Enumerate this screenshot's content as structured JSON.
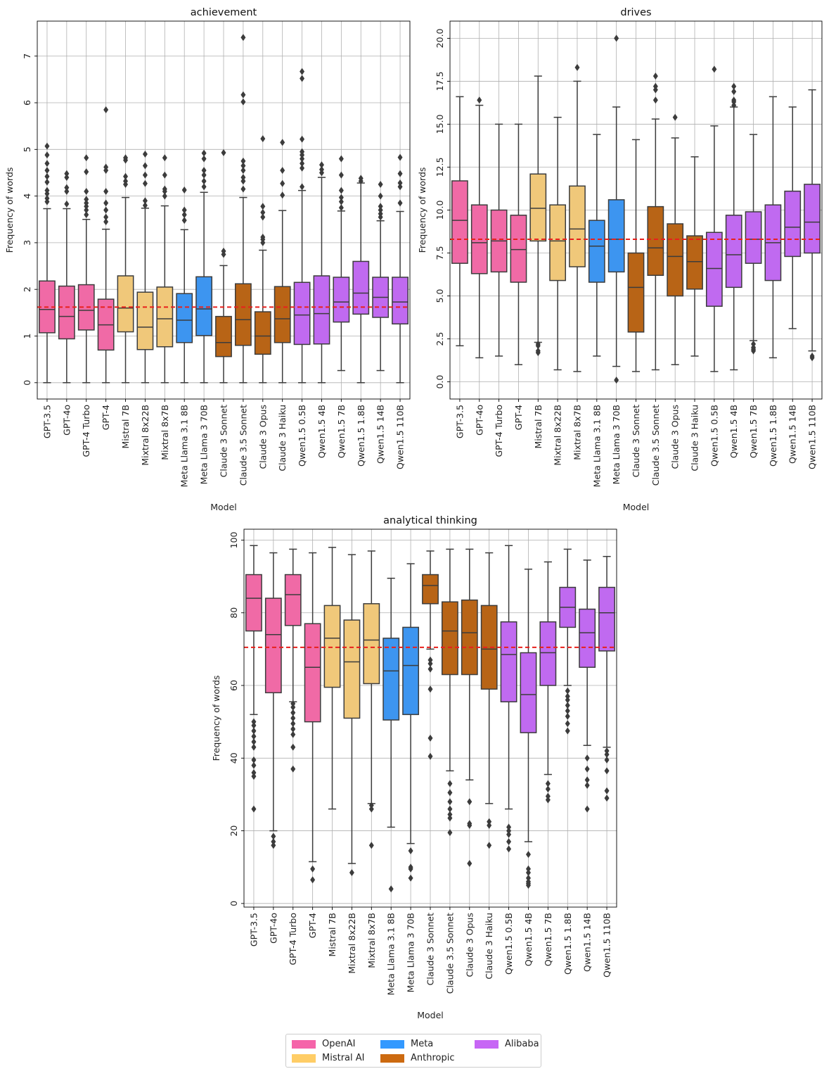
{
  "models": [
    "GPT-3.5",
    "GPT-4o",
    "GPT-4 Turbo",
    "GPT-4",
    "Mistral 7B",
    "Mixtral 8x22B",
    "Mixtral 8x7B",
    "Meta Llama 3.1 8B",
    "Meta Llama 3 70B",
    "Claude 3 Sonnet",
    "Claude 3.5 Sonnet",
    "Claude 3 Opus",
    "Claude 3 Haiku",
    "Qwen1.5 0.5B",
    "Qwen1.5 4B",
    "Qwen1.5 7B",
    "Qwen1.5 1.8B",
    "Qwen1.5 14B",
    "Qwen1.5 110B"
  ],
  "model_provider": [
    "OpenAI",
    "OpenAI",
    "OpenAI",
    "OpenAI",
    "Mistral AI",
    "Mistral AI",
    "Mistral AI",
    "Meta",
    "Meta",
    "Anthropic",
    "Anthropic",
    "Anthropic",
    "Anthropic",
    "Alibaba",
    "Alibaba",
    "Alibaba",
    "Alibaba",
    "Alibaba",
    "Alibaba"
  ],
  "provider_colors": {
    "OpenAI": {
      "box": "#f06aa6",
      "legend": "#f564a9"
    },
    "Mistral AI": {
      "box": "#f0c87a",
      "legend": "#ffcd66"
    },
    "Meta": {
      "box": "#3d95f0",
      "legend": "#3399ff"
    },
    "Anthropic": {
      "box": "#b86416",
      "legend": "#cc6a10"
    },
    "Alibaba": {
      "box": "#c06af0",
      "legend": "#c766f5"
    }
  },
  "legend": {
    "entries": [
      "OpenAI",
      "Mistral AI",
      "Meta",
      "Anthropic",
      "Alibaba"
    ],
    "placement": "bottom-center",
    "columns": 3
  },
  "colors": {
    "mean_line": "#e8201c",
    "box_edge": "#3c3c3c",
    "grid": "#b0b0b0"
  },
  "chart_data": [
    {
      "type": "box",
      "title": "achievement",
      "xlabel": "Model",
      "ylabel": "Frequency of words",
      "ylim": [
        -0.35,
        7.75
      ],
      "yticks": [
        0,
        1,
        2,
        3,
        4,
        5,
        6,
        7
      ],
      "ytick_labels": [
        "0",
        "1",
        "2",
        "3",
        "4",
        "5",
        "6",
        "7"
      ],
      "grid": true,
      "mean_line": 1.62,
      "boxes": [
        {
          "whislo": 0,
          "q1": 1.07,
          "med": 1.57,
          "q3": 2.18,
          "whishi": 3.73,
          "fliers": [
            3.88,
            3.95,
            4.05,
            4.12,
            4.3,
            4.42,
            4.55,
            4.7,
            4.88,
            5.07
          ]
        },
        {
          "whislo": 0,
          "q1": 0.94,
          "med": 1.42,
          "q3": 2.07,
          "whishi": 3.73,
          "fliers": [
            3.83,
            4.1,
            4.18,
            4.4,
            4.48
          ]
        },
        {
          "whislo": 0,
          "q1": 1.13,
          "med": 1.55,
          "q3": 2.1,
          "whishi": 3.5,
          "fliers": [
            3.6,
            3.7,
            3.78,
            3.85,
            3.93,
            4.1,
            4.52,
            4.82
          ]
        },
        {
          "whislo": 0,
          "q1": 0.7,
          "med": 1.24,
          "q3": 1.79,
          "whishi": 3.29,
          "fliers": [
            3.45,
            3.55,
            3.7,
            3.85,
            4.1,
            4.55,
            4.62,
            5.85
          ]
        },
        {
          "whislo": 0,
          "q1": 1.09,
          "med": 1.6,
          "q3": 2.29,
          "whishi": 3.97,
          "fliers": [
            4.25,
            4.32,
            4.42,
            4.77,
            4.82
          ]
        },
        {
          "whislo": 0,
          "q1": 0.71,
          "med": 1.19,
          "q3": 1.94,
          "whishi": 3.74,
          "fliers": [
            3.8,
            3.9,
            4.27,
            4.45,
            4.65,
            4.9
          ]
        },
        {
          "whislo": 0,
          "q1": 0.77,
          "med": 1.37,
          "q3": 2.05,
          "whishi": 3.79,
          "fliers": [
            4.0,
            4.1,
            4.15,
            4.45,
            4.82
          ]
        },
        {
          "whislo": 0,
          "q1": 0.86,
          "med": 1.34,
          "q3": 1.91,
          "whishi": 3.28,
          "fliers": [
            3.48,
            3.6,
            3.7,
            4.13
          ]
        },
        {
          "whislo": 0,
          "q1": 1.01,
          "med": 1.58,
          "q3": 2.27,
          "whishi": 4.08,
          "fliers": [
            4.2,
            4.32,
            4.45,
            4.55,
            4.8,
            4.92
          ]
        },
        {
          "whislo": 0,
          "q1": 0.56,
          "med": 0.86,
          "q3": 1.42,
          "whishi": 2.51,
          "fliers": [
            2.75,
            2.82,
            4.93
          ]
        },
        {
          "whislo": 0,
          "q1": 0.8,
          "med": 1.35,
          "q3": 2.12,
          "whishi": 3.97,
          "fliers": [
            4.15,
            4.32,
            4.4,
            4.55,
            4.65,
            4.75,
            6.02,
            6.17,
            7.4
          ]
        },
        {
          "whislo": 0,
          "q1": 0.61,
          "med": 1.0,
          "q3": 1.52,
          "whishi": 2.84,
          "fliers": [
            3.0,
            3.07,
            3.12,
            3.55,
            3.65,
            3.78,
            5.23
          ]
        },
        {
          "whislo": 0,
          "q1": 0.86,
          "med": 1.37,
          "q3": 2.06,
          "whishi": 3.69,
          "fliers": [
            4.02,
            4.27,
            4.55,
            5.15
          ]
        },
        {
          "whislo": 0,
          "q1": 0.82,
          "med": 1.45,
          "q3": 2.15,
          "whishi": 4.12,
          "fliers": [
            4.2,
            4.6,
            4.7,
            4.8,
            4.88,
            4.95,
            5.22,
            6.52,
            6.67
          ]
        },
        {
          "whislo": 0,
          "q1": 0.83,
          "med": 1.48,
          "q3": 2.29,
          "whishi": 4.4,
          "fliers": [
            4.5,
            4.57,
            4.67
          ]
        },
        {
          "whislo": 0.26,
          "q1": 1.3,
          "med": 1.73,
          "q3": 2.26,
          "whishi": 3.68,
          "fliers": [
            3.75,
            3.88,
            3.97,
            4.12,
            4.45,
            4.8
          ]
        },
        {
          "whislo": 0,
          "q1": 1.47,
          "med": 1.92,
          "q3": 2.6,
          "whishi": 4.28,
          "fliers": [
            4.32,
            4.38
          ]
        },
        {
          "whislo": 0.26,
          "q1": 1.4,
          "med": 1.83,
          "q3": 2.26,
          "whishi": 3.47,
          "fliers": [
            3.55,
            3.62,
            3.7,
            3.78,
            4.0,
            4.25
          ]
        },
        {
          "whislo": 0,
          "q1": 1.26,
          "med": 1.73,
          "q3": 2.26,
          "whishi": 3.67,
          "fliers": [
            3.85,
            4.2,
            4.28,
            4.48,
            4.83
          ]
        }
      ]
    },
    {
      "type": "box",
      "title": "drives",
      "xlabel": "Model",
      "ylabel": "Frequency of words",
      "ylim": [
        -1.0,
        21.0
      ],
      "yticks": [
        0,
        2.5,
        5,
        7.5,
        10,
        12.5,
        15,
        17.5,
        20
      ],
      "ytick_labels": [
        "0.0",
        "2.5",
        "5.0",
        "7.5",
        "10.0",
        "12.5",
        "15.0",
        "17.5",
        "20.0"
      ],
      "grid": true,
      "mean_line": 8.3,
      "boxes": [
        {
          "whislo": 2.1,
          "q1": 6.9,
          "med": 9.4,
          "q3": 11.7,
          "whishi": 16.6,
          "fliers": []
        },
        {
          "whislo": 1.4,
          "q1": 6.3,
          "med": 8.1,
          "q3": 10.3,
          "whishi": 16.1,
          "fliers": [
            16.4
          ]
        },
        {
          "whislo": 1.5,
          "q1": 6.4,
          "med": 8.2,
          "q3": 10.0,
          "whishi": 15.0,
          "fliers": []
        },
        {
          "whislo": 1.0,
          "q1": 5.8,
          "med": 7.7,
          "q3": 9.7,
          "whishi": 15.0,
          "fliers": []
        },
        {
          "whislo": 2.3,
          "q1": 8.2,
          "med": 10.1,
          "q3": 12.1,
          "whishi": 17.8,
          "fliers": [
            1.7,
            1.8,
            2.1,
            2.2
          ]
        },
        {
          "whislo": 0.7,
          "q1": 5.9,
          "med": 8.2,
          "q3": 10.3,
          "whishi": 15.4,
          "fliers": []
        },
        {
          "whislo": 0.6,
          "q1": 6.7,
          "med": 8.9,
          "q3": 11.4,
          "whishi": 17.5,
          "fliers": [
            18.3
          ]
        },
        {
          "whislo": 1.5,
          "q1": 5.8,
          "med": 7.9,
          "q3": 9.4,
          "whishi": 14.4,
          "fliers": []
        },
        {
          "whislo": 0.9,
          "q1": 6.4,
          "med": 8.3,
          "q3": 10.6,
          "whishi": 16.0,
          "fliers": [
            0.1,
            20.0
          ]
        },
        {
          "whislo": 0.6,
          "q1": 2.9,
          "med": 5.5,
          "q3": 7.5,
          "whishi": 14.1,
          "fliers": []
        },
        {
          "whislo": 0.7,
          "q1": 6.2,
          "med": 7.8,
          "q3": 10.2,
          "whishi": 15.3,
          "fliers": [
            16.4,
            17.0,
            17.2,
            17.8
          ]
        },
        {
          "whislo": 1.0,
          "q1": 5.0,
          "med": 7.3,
          "q3": 9.2,
          "whishi": 14.2,
          "fliers": [
            15.4
          ]
        },
        {
          "whislo": 1.5,
          "q1": 5.4,
          "med": 7.0,
          "q3": 8.5,
          "whishi": 13.1,
          "fliers": []
        },
        {
          "whislo": 0.6,
          "q1": 4.4,
          "med": 6.6,
          "q3": 8.7,
          "whishi": 14.9,
          "fliers": [
            18.2
          ]
        },
        {
          "whislo": 0.7,
          "q1": 5.5,
          "med": 7.4,
          "q3": 9.7,
          "whishi": 16.0,
          "fliers": [
            16.1,
            16.3,
            16.4,
            16.9,
            17.2
          ]
        },
        {
          "whislo": 2.4,
          "q1": 6.9,
          "med": 8.3,
          "q3": 9.9,
          "whishi": 14.4,
          "fliers": [
            1.8,
            1.9,
            2.0,
            2.2
          ]
        },
        {
          "whislo": 1.4,
          "q1": 5.9,
          "med": 8.1,
          "q3": 10.3,
          "whishi": 16.6,
          "fliers": []
        },
        {
          "whislo": 3.1,
          "q1": 7.3,
          "med": 9.0,
          "q3": 11.1,
          "whishi": 16.0,
          "fliers": []
        },
        {
          "whislo": 1.8,
          "q1": 7.5,
          "med": 9.3,
          "q3": 11.5,
          "whishi": 17.0,
          "fliers": [
            1.4,
            1.5
          ]
        }
      ]
    },
    {
      "type": "box",
      "title": "analytical thinking",
      "xlabel": "Model",
      "ylabel": "Frequency of words",
      "ylim": [
        -1.0,
        103.0
      ],
      "yticks": [
        0,
        20,
        40,
        60,
        80,
        100
      ],
      "ytick_labels": [
        "0",
        "20",
        "40",
        "60",
        "80",
        "100"
      ],
      "grid": true,
      "mean_line": 70.5,
      "boxes": [
        {
          "whislo": 52.0,
          "q1": 75.0,
          "med": 84.0,
          "q3": 90.5,
          "whishi": 98.5,
          "fliers": [
            26.0,
            35.0,
            36.0,
            38.0,
            39.5,
            43.0,
            44.5,
            46.0,
            47.5,
            49.0,
            50.0
          ]
        },
        {
          "whislo": 20.0,
          "q1": 58.0,
          "med": 74.0,
          "q3": 84.0,
          "whishi": 96.5,
          "fliers": [
            16.0,
            17.0,
            18.5
          ]
        },
        {
          "whislo": 55.5,
          "q1": 76.5,
          "med": 85.0,
          "q3": 90.5,
          "whishi": 97.5,
          "fliers": [
            37.0,
            43.0,
            46.5,
            48.0,
            49.5,
            51.0,
            52.5,
            54.0,
            55.0
          ]
        },
        {
          "whislo": 11.5,
          "q1": 50.0,
          "med": 65.0,
          "q3": 77.0,
          "whishi": 96.5,
          "fliers": [
            6.5,
            9.5
          ]
        },
        {
          "whislo": 26.0,
          "q1": 59.5,
          "med": 73.0,
          "q3": 82.0,
          "whishi": 98.0,
          "fliers": []
        },
        {
          "whislo": 11.0,
          "q1": 51.0,
          "med": 66.5,
          "q3": 78.0,
          "whishi": 96.0,
          "fliers": [
            8.5
          ]
        },
        {
          "whislo": 27.5,
          "q1": 60.5,
          "med": 72.5,
          "q3": 82.5,
          "whishi": 97.0,
          "fliers": [
            16.0,
            26.0,
            27.0
          ]
        },
        {
          "whislo": 21.0,
          "q1": 50.5,
          "med": 64.0,
          "q3": 73.0,
          "whishi": 89.5,
          "fliers": [
            4.0
          ]
        },
        {
          "whislo": 16.5,
          "q1": 52.0,
          "med": 65.5,
          "q3": 76.0,
          "whishi": 93.5,
          "fliers": [
            7.0,
            9.5,
            10.0,
            14.5
          ]
        },
        {
          "whislo": 70.0,
          "q1": 82.5,
          "med": 87.5,
          "q3": 90.5,
          "whishi": 97.0,
          "fliers": [
            40.5,
            45.5,
            59.0,
            64.5,
            66.0,
            67.0
          ]
        },
        {
          "whislo": 36.5,
          "q1": 63.0,
          "med": 75.0,
          "q3": 83.0,
          "whishi": 97.5,
          "fliers": [
            19.5,
            23.5,
            24.5,
            26.0,
            28.0,
            30.5,
            33.0
          ]
        },
        {
          "whislo": 34.0,
          "q1": 63.0,
          "med": 74.5,
          "q3": 83.5,
          "whishi": 97.5,
          "fliers": [
            11.0,
            21.5,
            22.0,
            28.0
          ]
        },
        {
          "whislo": 27.5,
          "q1": 59.0,
          "med": 70.0,
          "q3": 82.0,
          "whishi": 96.5,
          "fliers": [
            16.0,
            21.5,
            22.5
          ]
        },
        {
          "whislo": 26.0,
          "q1": 55.5,
          "med": 68.5,
          "q3": 77.5,
          "whishi": 98.5,
          "fliers": [
            15.0,
            17.0,
            19.0,
            20.0,
            21.0
          ]
        },
        {
          "whislo": 17.0,
          "q1": 47.0,
          "med": 57.5,
          "q3": 69.0,
          "whishi": 92.0,
          "fliers": [
            5.0,
            5.5,
            6.0,
            7.0,
            8.5,
            9.5,
            13.5
          ]
        },
        {
          "whislo": 35.5,
          "q1": 60.0,
          "med": 69.0,
          "q3": 77.5,
          "whishi": 94.0,
          "fliers": [
            28.5,
            29.5,
            31.5,
            33.0
          ]
        },
        {
          "whislo": 60.0,
          "q1": 76.0,
          "med": 81.5,
          "q3": 87.0,
          "whishi": 97.5,
          "fliers": [
            47.5,
            49.5,
            51.5,
            53.0,
            54.5,
            56.0,
            57.0,
            58.5
          ]
        },
        {
          "whislo": 43.5,
          "q1": 65.0,
          "med": 74.5,
          "q3": 81.0,
          "whishi": 94.5,
          "fliers": [
            26.0,
            32.5,
            34.0,
            37.0,
            40.0
          ]
        },
        {
          "whislo": 43.0,
          "q1": 69.5,
          "med": 80.0,
          "q3": 87.0,
          "whishi": 95.5,
          "fliers": [
            29.0,
            31.0,
            36.5,
            39.5,
            41.0,
            42.0
          ]
        }
      ]
    }
  ]
}
